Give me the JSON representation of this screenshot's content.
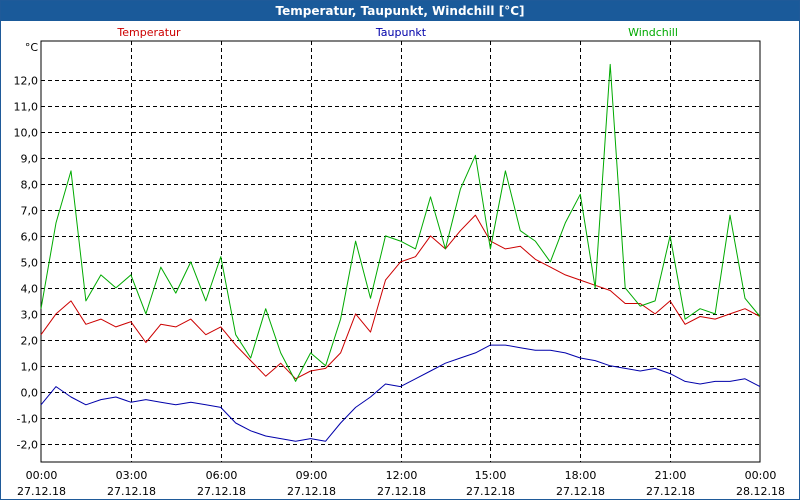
{
  "window": {
    "title": "Temperatur, Taupunkt, Windchill [°C]"
  },
  "chart_data": {
    "type": "line",
    "title": "Temperatur, Taupunkt, Windchill [°C]",
    "ylabel": "°C",
    "ylim": [
      -2.7,
      13.5
    ],
    "xlim": [
      0,
      24
    ],
    "y_ticks": [
      -2,
      -1,
      0,
      1,
      2,
      3,
      4,
      5,
      6,
      7,
      8,
      9,
      10,
      11,
      12
    ],
    "y_tick_labels": [
      "-2,0",
      "-1,0",
      "0,0",
      "1,0",
      "2,0",
      "3,0",
      "4,0",
      "5,0",
      "6,0",
      "7,0",
      "8,0",
      "9,0",
      "10,0",
      "11,0",
      "12,0"
    ],
    "x_ticks": [
      0,
      3,
      6,
      9,
      12,
      15,
      18,
      21,
      24
    ],
    "x_tick_labels": [
      [
        "00:00",
        "27.12.18"
      ],
      [
        "03:00",
        "27.12.18"
      ],
      [
        "06:00",
        "27.12.18"
      ],
      [
        "09:00",
        "27.12.18"
      ],
      [
        "12:00",
        "27.12.18"
      ],
      [
        "15:00",
        "27.12.18"
      ],
      [
        "18:00",
        "27.12.18"
      ],
      [
        "21:00",
        "27.12.18"
      ],
      [
        "00:00",
        "28.12.18"
      ]
    ],
    "grid": true,
    "legend_position": "top",
    "x": [
      0,
      0.5,
      1,
      1.5,
      2,
      2.5,
      3,
      3.5,
      4,
      4.5,
      5,
      5.5,
      6,
      6.5,
      7,
      7.5,
      8,
      8.5,
      9,
      9.5,
      10,
      10.5,
      11,
      11.5,
      12,
      12.5,
      13,
      13.5,
      14,
      14.5,
      15,
      15.5,
      16,
      16.5,
      17,
      17.5,
      18,
      18.5,
      19,
      19.5,
      20,
      20.5,
      21,
      21.5,
      22,
      22.5,
      23,
      23.5,
      24
    ],
    "series": [
      {
        "name": "Temperatur",
        "color": "#cc0000",
        "values": [
          2.2,
          3.0,
          3.5,
          2.6,
          2.8,
          2.5,
          2.7,
          1.9,
          2.6,
          2.5,
          2.8,
          2.2,
          2.5,
          1.8,
          1.2,
          0.6,
          1.1,
          0.5,
          0.8,
          0.9,
          1.5,
          3.0,
          2.3,
          4.3,
          5.0,
          5.2,
          6.0,
          5.5,
          6.2,
          6.8,
          5.8,
          5.5,
          5.6,
          5.1,
          4.8,
          4.5,
          4.3,
          4.1,
          3.9,
          3.4,
          3.4,
          3.0,
          3.5,
          2.6,
          2.9,
          2.8,
          3.0,
          3.2,
          2.9
        ]
      },
      {
        "name": "Taupunkt",
        "color": "#0000aa",
        "values": [
          -0.5,
          0.2,
          -0.2,
          -0.5,
          -0.3,
          -0.2,
          -0.4,
          -0.3,
          -0.4,
          -0.5,
          -0.4,
          -0.5,
          -0.6,
          -1.2,
          -1.5,
          -1.7,
          -1.8,
          -1.9,
          -1.8,
          -1.9,
          -1.2,
          -0.6,
          -0.2,
          0.3,
          0.2,
          0.5,
          0.8,
          1.1,
          1.3,
          1.5,
          1.8,
          1.8,
          1.7,
          1.6,
          1.6,
          1.5,
          1.3,
          1.2,
          1.0,
          0.9,
          0.8,
          0.9,
          0.7,
          0.4,
          0.3,
          0.4,
          0.4,
          0.5,
          0.2
        ]
      },
      {
        "name": "Windchill",
        "color": "#00aa00",
        "values": [
          3.2,
          6.5,
          8.5,
          3.5,
          4.5,
          4.0,
          4.5,
          3.0,
          4.8,
          3.8,
          5.0,
          3.5,
          5.2,
          2.2,
          1.3,
          3.2,
          1.5,
          0.4,
          1.5,
          1.0,
          2.8,
          5.8,
          3.6,
          6.0,
          5.8,
          5.5,
          7.5,
          5.5,
          7.8,
          9.1,
          5.5,
          8.5,
          6.2,
          5.8,
          5.0,
          6.5,
          7.6,
          4.0,
          12.6,
          4.0,
          3.3,
          3.5,
          6.0,
          2.8,
          3.2,
          3.0,
          6.8,
          3.6,
          2.9
        ]
      }
    ]
  }
}
